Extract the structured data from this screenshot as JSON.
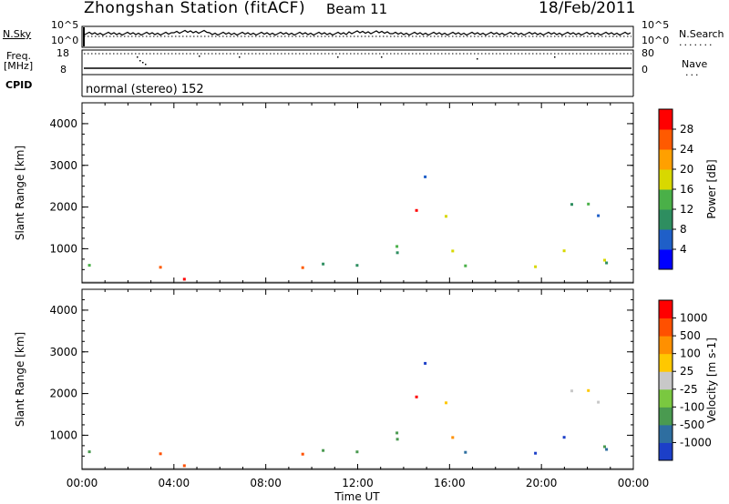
{
  "header": {
    "title": "Zhongshan Station (fitACF)",
    "beam": "Beam 11",
    "date": "18/Feb/2011",
    "mode": "normal (stereo) 152"
  },
  "strips": {
    "nsky_label": "N.Sky",
    "nsearch_label": "N.Search",
    "freq_label_1": "Freq.",
    "freq_label_2": "[MHz]",
    "nave_label": "Nave",
    "cpid_label": "CPID",
    "ticks_left_top": [
      "10^5",
      "10^0"
    ],
    "ticks_right_top": [
      "10^5",
      "10^0"
    ],
    "ticks_left_freq": [
      "18",
      "8"
    ],
    "ticks_right_nave": [
      "80",
      "0"
    ]
  },
  "chart_data": [
    {
      "type": "heatmap",
      "name": "power",
      "ylabel": "Slant Range [km]",
      "yticks": [
        "4000",
        "3000",
        "2000",
        "1000"
      ],
      "ylim": [
        180,
        4500
      ],
      "xlim": [
        0,
        24
      ],
      "colorbar_label": "Power [dB]",
      "colorbar_ticks": [
        "28",
        "24",
        "20",
        "16",
        "12",
        "8",
        "4"
      ],
      "colors": [
        "#0000ff",
        "#1f5fc8",
        "#2e8e60",
        "#4ab048",
        "#d8d800",
        "#ffa000",
        "#ff5a00",
        "#ff0000"
      ]
    },
    {
      "type": "heatmap",
      "name": "velocity",
      "ylabel": "Slant Range [km]",
      "yticks": [
        "4000",
        "3000",
        "2000",
        "1000"
      ],
      "ylim": [
        180,
        4500
      ],
      "xlim": [
        0,
        24
      ],
      "xticks": [
        "00:00",
        "04:00",
        "08:00",
        "12:00",
        "16:00",
        "20:00",
        "00:00"
      ],
      "xlabel": "Time UT",
      "colorbar_label": "Velocity [m s-1]",
      "colorbar_ticks": [
        "1000",
        "500",
        "100",
        "25",
        "-25",
        "-100",
        "-500",
        "-1000"
      ],
      "colors": [
        "#1c3fc8",
        "#2e6ea0",
        "#4a9a50",
        "#7ac840",
        "#c8c8c8",
        "#ffc800",
        "#ff9000",
        "#ff5000",
        "#ff0000"
      ]
    }
  ]
}
